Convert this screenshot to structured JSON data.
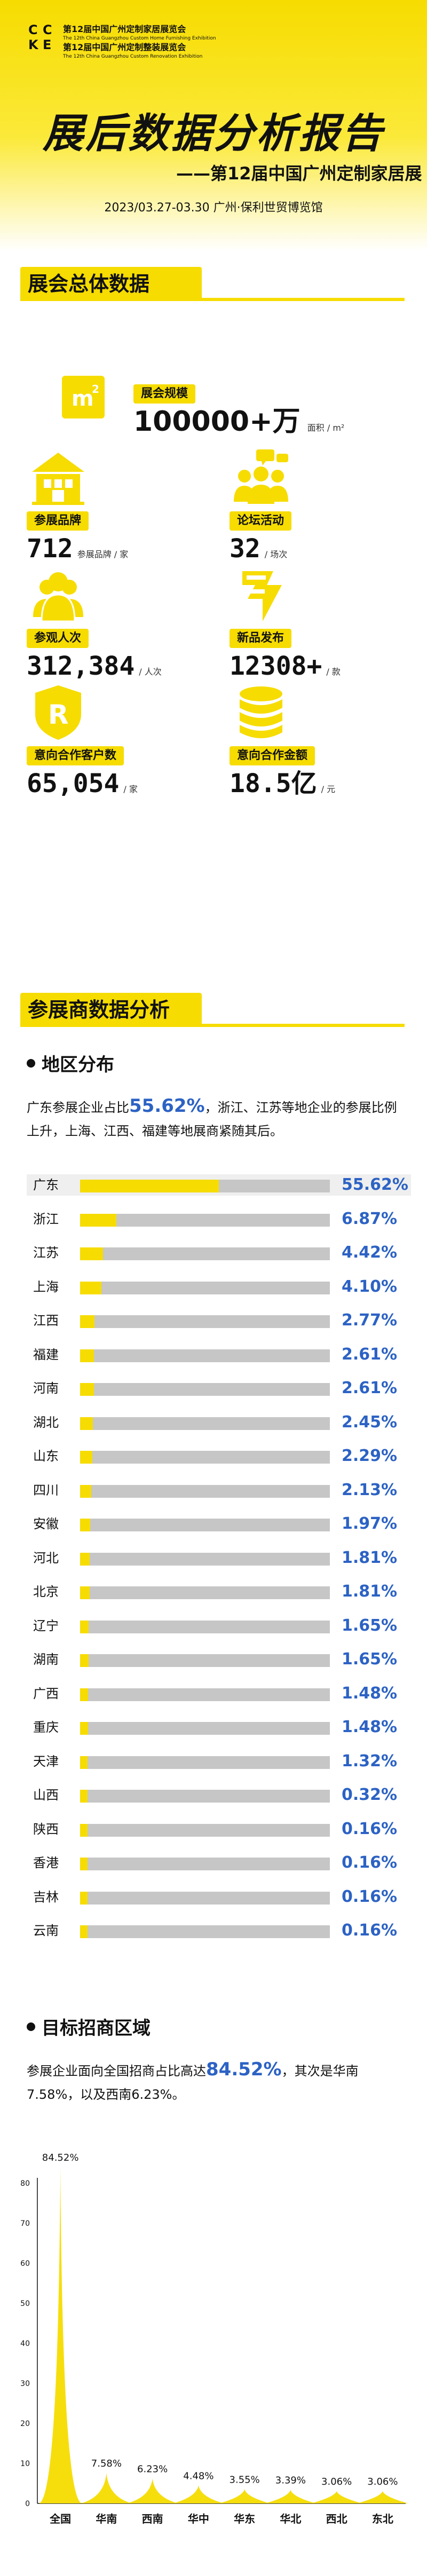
{
  "header": {
    "logo_line1": "第12届中国广州定制家居展览会",
    "logo_line2": "The 12th China Guangzhou Custom Home Furnishing Exhibition",
    "logo_line3": "第12届中国广州定制整装展览会",
    "logo_line4": "The 12th China Guangzhou Custom Renovation Exhibition",
    "main_title": "展后数据分析报告",
    "sub_title": "——第12届中国广州定制家居展",
    "date": "2023/03.27-03.30   广州·保利世贸博览馆"
  },
  "overall": {
    "title": "展会总体数据",
    "scale_label": "展会规模",
    "scale_value": "100000+万",
    "scale_unit": "面积 / m²",
    "stats": [
      {
        "label": "参展品牌",
        "value": "712",
        "unit": "参展品牌 / 家",
        "icon": "building-icon"
      },
      {
        "label": "论坛活动",
        "value": "32",
        "unit": "/ 场次",
        "icon": "forum-icon"
      },
      {
        "label": "参观人次",
        "value": "312,384",
        "unit": "/ 人次",
        "icon": "visitors-icon"
      },
      {
        "label": "新品发布",
        "value": "12308+",
        "unit": "/ 款",
        "icon": "new-product-icon"
      },
      {
        "label": "意向合作客户数",
        "value": "65,054",
        "unit": "/ 家",
        "icon": "registered-icon"
      },
      {
        "label": "意向合作金额",
        "value": "18.5亿",
        "unit": "/ 元",
        "icon": "coins-icon"
      }
    ]
  },
  "exhibitors": {
    "title": "参展商数据分析",
    "region": {
      "title": "地区分布",
      "text_a": "广东参展企业占比",
      "text_hl": "55.62%",
      "text_b": "，浙江、江苏等地企业的参展比例上升，上海、江西、福建等地展商紧随其后。"
    },
    "target": {
      "title": "目标招商区域",
      "text_a": "参展企业面向全国招商占比高达",
      "text_hl": "84.52%",
      "text_b": "，其次是华南7.58%，以及西南6.23%。"
    }
  },
  "chart_data": [
    {
      "type": "bar",
      "orientation": "horizontal",
      "categories": [
        "广东",
        "浙江",
        "江苏",
        "上海",
        "江西",
        "福建",
        "河南",
        "湖北",
        "山东",
        "四川",
        "安徽",
        "河北",
        "北京",
        "辽宁",
        "湖南",
        "广西",
        "重庆",
        "天津",
        "山西",
        "陕西",
        "香港",
        "吉林",
        "云南"
      ],
      "labels": [
        "55.62%",
        "6.87%",
        "4.42%",
        "4.10%",
        "2.77%",
        "2.61%",
        "2.61%",
        "2.45%",
        "2.29%",
        "2.13%",
        "1.97%",
        "1.81%",
        "1.81%",
        "1.65%",
        "1.65%",
        "1.48%",
        "1.48%",
        "1.32%",
        "0.32%",
        "0.16%",
        "0.16%",
        "0.16%",
        "0.16%"
      ],
      "values": [
        55.62,
        6.87,
        4.42,
        4.1,
        2.77,
        2.61,
        2.61,
        2.45,
        2.29,
        2.13,
        1.97,
        1.81,
        1.81,
        1.65,
        1.65,
        1.48,
        1.48,
        1.32,
        0.32,
        0.16,
        0.16,
        0.16,
        0.16
      ],
      "xlim": [
        0,
        100
      ],
      "colors": {
        "fill": "#f6dc00",
        "track": "#c6c6c6",
        "value": "#2c62c4"
      }
    },
    {
      "type": "area",
      "categories": [
        "全国",
        "华南",
        "西南",
        "华中",
        "华东",
        "华北",
        "西北",
        "东北"
      ],
      "labels": [
        "84.52%",
        "7.58%",
        "6.23%",
        "4.48%",
        "3.55%",
        "3.39%",
        "3.06%",
        "3.06%"
      ],
      "values": [
        84.52,
        7.58,
        6.23,
        4.48,
        3.55,
        3.39,
        3.06,
        3.06
      ],
      "ylim": [
        0,
        80
      ],
      "yticks": [
        "0",
        "10",
        "20",
        "30",
        "40",
        "50",
        "60",
        "70",
        "80"
      ],
      "colors": {
        "fill": "#f6dc00",
        "axis": "#111111"
      }
    }
  ],
  "colors": {
    "brand_yellow": "#f6dc00",
    "highlight_blue": "#2c62c4"
  }
}
